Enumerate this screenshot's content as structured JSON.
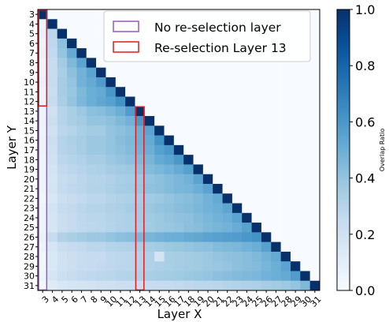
{
  "chart_data": {
    "type": "heatmap",
    "title": "",
    "xlabel": "Layer X",
    "ylabel": "Layer Y",
    "x_labels": [
      "3",
      "4",
      "5",
      "6",
      "7",
      "8",
      "9",
      "10",
      "11",
      "12",
      "13",
      "14",
      "15",
      "16",
      "17",
      "18",
      "19",
      "20",
      "21",
      "22",
      "23",
      "24",
      "25",
      "26",
      "27",
      "28",
      "29",
      "30",
      "31"
    ],
    "y_labels": [
      "3",
      "4",
      "5",
      "6",
      "7",
      "8",
      "9",
      "10",
      "11",
      "12",
      "13",
      "14",
      "15",
      "16",
      "17",
      "18",
      "19",
      "20",
      "21",
      "22",
      "23",
      "24",
      "25",
      "26",
      "27",
      "28",
      "29",
      "30",
      "31"
    ],
    "values": [
      [
        1.0,
        0,
        0,
        0,
        0,
        0,
        0,
        0,
        0,
        0,
        0,
        0,
        0,
        0,
        0,
        0,
        0,
        0,
        0,
        0,
        0,
        0,
        0,
        0,
        0,
        0,
        0,
        0,
        0
      ],
      [
        0.05,
        1.0,
        0,
        0,
        0,
        0,
        0,
        0,
        0,
        0,
        0,
        0,
        0,
        0,
        0,
        0,
        0,
        0,
        0,
        0,
        0,
        0,
        0,
        0,
        0,
        0,
        0,
        0,
        0
      ],
      [
        0.07,
        0.28,
        1.0,
        0,
        0,
        0,
        0,
        0,
        0,
        0,
        0,
        0,
        0,
        0,
        0,
        0,
        0,
        0,
        0,
        0,
        0,
        0,
        0,
        0,
        0,
        0,
        0,
        0,
        0
      ],
      [
        0.06,
        0.27,
        0.42,
        1.0,
        0,
        0,
        0,
        0,
        0,
        0,
        0,
        0,
        0,
        0,
        0,
        0,
        0,
        0,
        0,
        0,
        0,
        0,
        0,
        0,
        0,
        0,
        0,
        0,
        0
      ],
      [
        0.07,
        0.26,
        0.4,
        0.52,
        1.0,
        0,
        0,
        0,
        0,
        0,
        0,
        0,
        0,
        0,
        0,
        0,
        0,
        0,
        0,
        0,
        0,
        0,
        0,
        0,
        0,
        0,
        0,
        0,
        0
      ],
      [
        0.06,
        0.24,
        0.36,
        0.45,
        0.55,
        1.0,
        0,
        0,
        0,
        0,
        0,
        0,
        0,
        0,
        0,
        0,
        0,
        0,
        0,
        0,
        0,
        0,
        0,
        0,
        0,
        0,
        0,
        0,
        0
      ],
      [
        0.06,
        0.24,
        0.34,
        0.42,
        0.48,
        0.55,
        1.0,
        0,
        0,
        0,
        0,
        0,
        0,
        0,
        0,
        0,
        0,
        0,
        0,
        0,
        0,
        0,
        0,
        0,
        0,
        0,
        0,
        0,
        0
      ],
      [
        0.07,
        0.24,
        0.35,
        0.4,
        0.48,
        0.52,
        0.58,
        1.0,
        0,
        0,
        0,
        0,
        0,
        0,
        0,
        0,
        0,
        0,
        0,
        0,
        0,
        0,
        0,
        0,
        0,
        0,
        0,
        0,
        0
      ],
      [
        0.06,
        0.23,
        0.35,
        0.39,
        0.45,
        0.5,
        0.52,
        0.6,
        1.0,
        0,
        0,
        0,
        0,
        0,
        0,
        0,
        0,
        0,
        0,
        0,
        0,
        0,
        0,
        0,
        0,
        0,
        0,
        0,
        0
      ],
      [
        0.06,
        0.24,
        0.34,
        0.4,
        0.46,
        0.5,
        0.53,
        0.56,
        0.62,
        1.0,
        0,
        0,
        0,
        0,
        0,
        0,
        0,
        0,
        0,
        0,
        0,
        0,
        0,
        0,
        0,
        0,
        0,
        0,
        0
      ],
      [
        0.05,
        0.2,
        0.3,
        0.34,
        0.38,
        0.42,
        0.43,
        0.46,
        0.5,
        0.58,
        1.0,
        0,
        0,
        0,
        0,
        0,
        0,
        0,
        0,
        0,
        0,
        0,
        0,
        0,
        0,
        0,
        0,
        0,
        0
      ],
      [
        0.06,
        0.22,
        0.3,
        0.34,
        0.36,
        0.4,
        0.4,
        0.42,
        0.45,
        0.48,
        0.6,
        1.0,
        0,
        0,
        0,
        0,
        0,
        0,
        0,
        0,
        0,
        0,
        0,
        0,
        0,
        0,
        0,
        0,
        0
      ],
      [
        0.05,
        0.2,
        0.28,
        0.3,
        0.34,
        0.36,
        0.36,
        0.4,
        0.42,
        0.44,
        0.5,
        0.55,
        1.0,
        0,
        0,
        0,
        0,
        0,
        0,
        0,
        0,
        0,
        0,
        0,
        0,
        0,
        0,
        0,
        0
      ],
      [
        0.06,
        0.22,
        0.3,
        0.33,
        0.35,
        0.38,
        0.38,
        0.4,
        0.43,
        0.45,
        0.5,
        0.52,
        0.62,
        1.0,
        0,
        0,
        0,
        0,
        0,
        0,
        0,
        0,
        0,
        0,
        0,
        0,
        0,
        0,
        0
      ],
      [
        0.06,
        0.21,
        0.3,
        0.32,
        0.35,
        0.38,
        0.38,
        0.4,
        0.42,
        0.44,
        0.48,
        0.5,
        0.56,
        0.6,
        1.0,
        0,
        0,
        0,
        0,
        0,
        0,
        0,
        0,
        0,
        0,
        0,
        0,
        0,
        0
      ],
      [
        0.05,
        0.2,
        0.28,
        0.3,
        0.32,
        0.35,
        0.35,
        0.38,
        0.4,
        0.42,
        0.45,
        0.47,
        0.52,
        0.55,
        0.6,
        1.0,
        0,
        0,
        0,
        0,
        0,
        0,
        0,
        0,
        0,
        0,
        0,
        0,
        0
      ],
      [
        0.05,
        0.18,
        0.26,
        0.28,
        0.3,
        0.32,
        0.33,
        0.35,
        0.37,
        0.38,
        0.42,
        0.44,
        0.46,
        0.48,
        0.52,
        0.56,
        1.0,
        0,
        0,
        0,
        0,
        0,
        0,
        0,
        0,
        0,
        0,
        0,
        0
      ],
      [
        0.05,
        0.17,
        0.24,
        0.26,
        0.28,
        0.3,
        0.3,
        0.32,
        0.34,
        0.35,
        0.38,
        0.4,
        0.42,
        0.44,
        0.46,
        0.48,
        0.55,
        1.0,
        0,
        0,
        0,
        0,
        0,
        0,
        0,
        0,
        0,
        0,
        0
      ],
      [
        0.05,
        0.18,
        0.25,
        0.27,
        0.29,
        0.31,
        0.31,
        0.33,
        0.35,
        0.36,
        0.39,
        0.41,
        0.42,
        0.44,
        0.46,
        0.47,
        0.5,
        0.55,
        1.0,
        0,
        0,
        0,
        0,
        0,
        0,
        0,
        0,
        0,
        0
      ],
      [
        0.04,
        0.16,
        0.22,
        0.24,
        0.26,
        0.28,
        0.28,
        0.3,
        0.32,
        0.33,
        0.35,
        0.37,
        0.38,
        0.4,
        0.42,
        0.43,
        0.45,
        0.48,
        0.52,
        1.0,
        0,
        0,
        0,
        0,
        0,
        0,
        0,
        0,
        0
      ],
      [
        0.05,
        0.18,
        0.24,
        0.26,
        0.28,
        0.3,
        0.3,
        0.32,
        0.33,
        0.35,
        0.37,
        0.38,
        0.4,
        0.41,
        0.43,
        0.44,
        0.46,
        0.48,
        0.5,
        0.54,
        1.0,
        0,
        0,
        0,
        0,
        0,
        0,
        0,
        0
      ],
      [
        0.05,
        0.17,
        0.23,
        0.25,
        0.27,
        0.29,
        0.29,
        0.31,
        0.32,
        0.33,
        0.36,
        0.37,
        0.38,
        0.4,
        0.41,
        0.42,
        0.44,
        0.46,
        0.48,
        0.5,
        0.55,
        1.0,
        0,
        0,
        0,
        0,
        0,
        0,
        0
      ],
      [
        0.05,
        0.17,
        0.23,
        0.25,
        0.27,
        0.28,
        0.29,
        0.3,
        0.32,
        0.33,
        0.35,
        0.36,
        0.38,
        0.39,
        0.4,
        0.42,
        0.43,
        0.45,
        0.47,
        0.48,
        0.51,
        0.56,
        1.0,
        0,
        0,
        0,
        0,
        0,
        0
      ],
      [
        0.07,
        0.24,
        0.32,
        0.34,
        0.36,
        0.38,
        0.38,
        0.4,
        0.42,
        0.43,
        0.46,
        0.47,
        0.48,
        0.5,
        0.5,
        0.52,
        0.53,
        0.55,
        0.56,
        0.57,
        0.58,
        0.6,
        0.62,
        1.0,
        0,
        0,
        0,
        0,
        0
      ],
      [
        0.05,
        0.17,
        0.23,
        0.25,
        0.26,
        0.28,
        0.28,
        0.3,
        0.31,
        0.32,
        0.34,
        0.35,
        0.36,
        0.38,
        0.39,
        0.4,
        0.41,
        0.42,
        0.44,
        0.45,
        0.46,
        0.48,
        0.5,
        0.56,
        1.0,
        0,
        0,
        0,
        0
      ],
      [
        0.04,
        0.15,
        0.2,
        0.22,
        0.24,
        0.25,
        0.25,
        0.27,
        0.28,
        0.29,
        0.31,
        0.32,
        0.18,
        0.34,
        0.35,
        0.36,
        0.37,
        0.38,
        0.4,
        0.41,
        0.42,
        0.43,
        0.45,
        0.48,
        0.52,
        1.0,
        0,
        0,
        0
      ],
      [
        0.04,
        0.15,
        0.2,
        0.22,
        0.24,
        0.25,
        0.26,
        0.27,
        0.28,
        0.29,
        0.31,
        0.32,
        0.33,
        0.34,
        0.35,
        0.36,
        0.37,
        0.38,
        0.39,
        0.4,
        0.42,
        0.43,
        0.44,
        0.47,
        0.5,
        0.55,
        1.0,
        0,
        0
      ],
      [
        0.05,
        0.17,
        0.22,
        0.24,
        0.26,
        0.27,
        0.28,
        0.29,
        0.3,
        0.31,
        0.33,
        0.34,
        0.35,
        0.36,
        0.37,
        0.38,
        0.39,
        0.4,
        0.42,
        0.43,
        0.44,
        0.45,
        0.46,
        0.48,
        0.5,
        0.52,
        0.58,
        1.0,
        0
      ],
      [
        0.03,
        0.12,
        0.16,
        0.17,
        0.18,
        0.19,
        0.2,
        0.21,
        0.22,
        0.22,
        0.23,
        0.24,
        0.25,
        0.25,
        0.26,
        0.27,
        0.28,
        0.28,
        0.29,
        0.3,
        0.31,
        0.32,
        0.33,
        0.35,
        0.36,
        0.38,
        0.4,
        0.45,
        1.0
      ]
    ],
    "colorbar": {
      "label": "Overlap Ratio",
      "ticks": [
        "0.0",
        "0.2",
        "0.4",
        "0.6",
        "0.8",
        "1.0"
      ],
      "range": [
        0.0,
        1.0
      ],
      "colormap": "Blues"
    },
    "legend": {
      "placement": "top-right",
      "entries": [
        {
          "label": "No re-selection layer",
          "color": "#9b59b6"
        },
        {
          "label": "Re-selection Layer 13",
          "color": "#e41a1c"
        }
      ]
    },
    "highlights": [
      {
        "name": "No re-selection layer",
        "column": "3",
        "from_row": "3",
        "to_row": "31",
        "color": "#9b59b6"
      },
      {
        "name": "Re-selection Layer 13",
        "column": "3",
        "from_row": "3",
        "to_row": "12",
        "color": "#e41a1c"
      },
      {
        "name": "Re-selection Layer 13",
        "column": "13",
        "from_row": "13",
        "to_row": "31",
        "color": "#e41a1c"
      }
    ]
  }
}
